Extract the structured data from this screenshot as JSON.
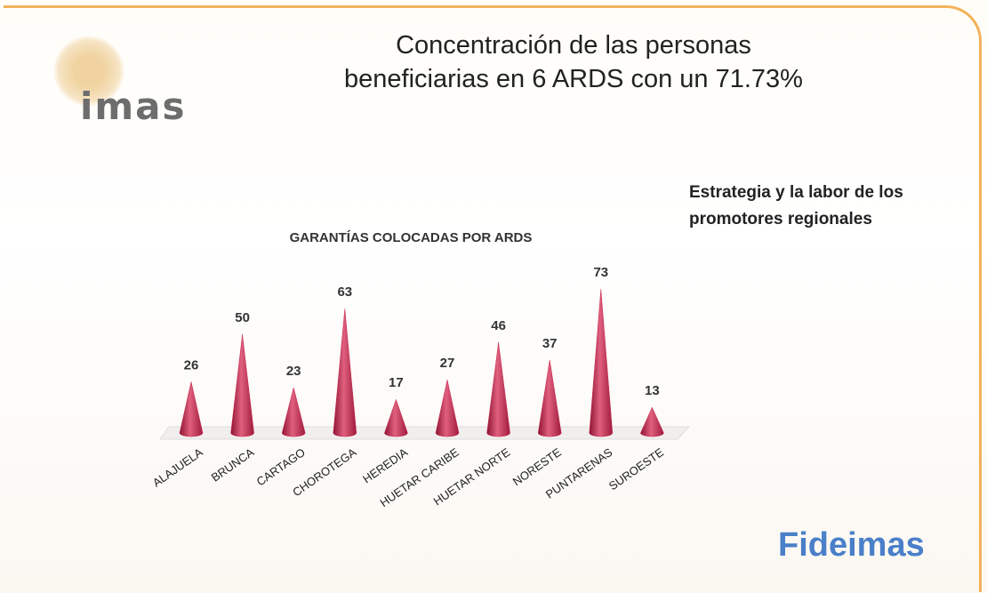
{
  "header": {
    "title": "Concentración de las personas beneficiarias en 6 ARDS con un 71.73%",
    "note": "Estrategia y la labor de los promotores regionales",
    "logo_left": "imas",
    "logo_right": "Fideimas"
  },
  "chart_data": {
    "type": "bar",
    "title": "GARANTÍAS COLOCADAS POR ARDS",
    "categories": [
      "ALAJUELA",
      "BRUNCA",
      "CARTAGO",
      "CHOROTEGA",
      "HEREDIA",
      "HUETAR CARIBE",
      "HUETAR NORTE",
      "NORESTE",
      "PUNTARENAS",
      "SUROESTE"
    ],
    "values": [
      26,
      50,
      23,
      63,
      17,
      27,
      46,
      37,
      73,
      13
    ],
    "color": "#c8284e"
  }
}
